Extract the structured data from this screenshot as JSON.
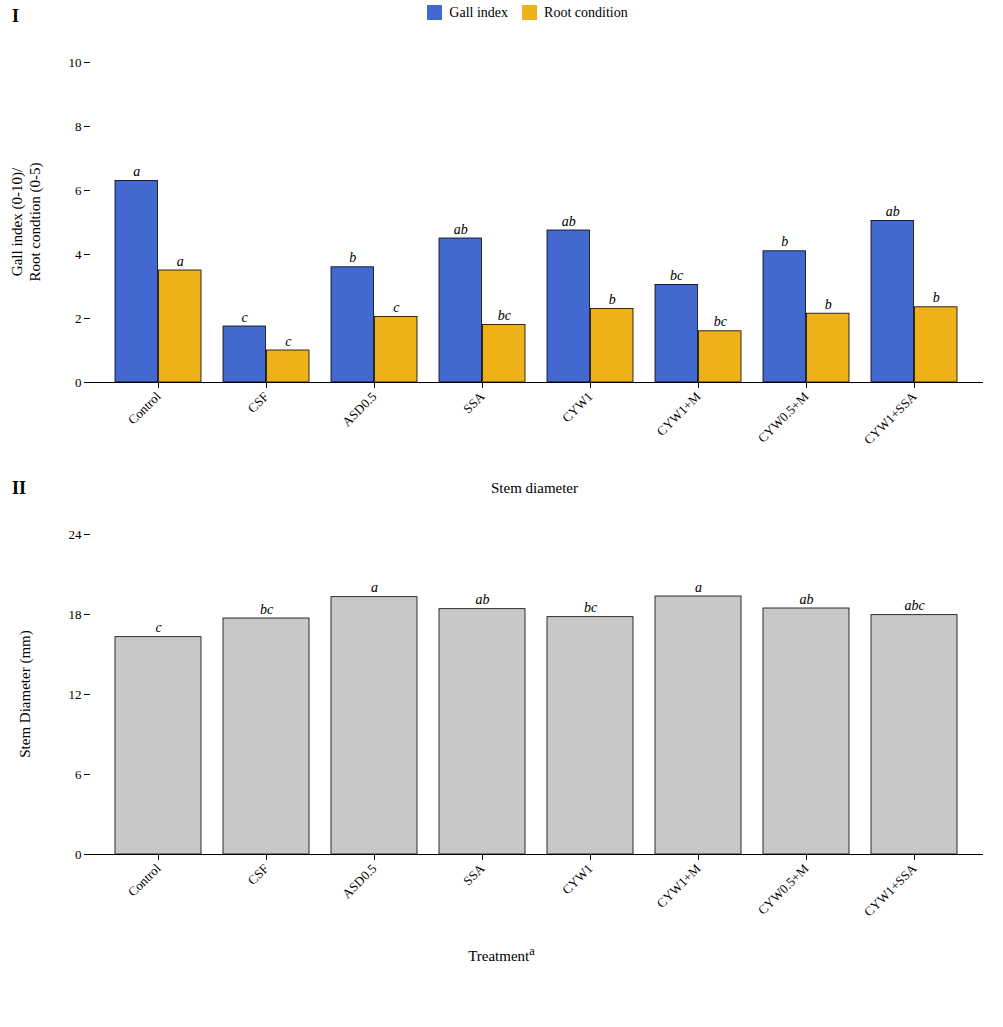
{
  "chart_data": [
    {
      "type": "bar",
      "panel_label": "I",
      "categories": [
        "Control",
        "CSF",
        "ASD0.5",
        "SSA",
        "CYW1",
        "CYW1+M",
        "CYW0.5+M",
        "CYW1+SSA"
      ],
      "series": [
        {
          "name": "Gall index",
          "values": [
            6.3,
            1.75,
            3.6,
            4.5,
            4.75,
            3.05,
            4.1,
            5.05
          ],
          "labels": [
            "a",
            "c",
            "b",
            "ab",
            "ab",
            "bc",
            "b",
            "ab"
          ]
        },
        {
          "name": "Root condition",
          "values": [
            3.5,
            1.0,
            2.05,
            1.8,
            2.3,
            1.6,
            2.15,
            2.35
          ],
          "labels": [
            "a",
            "c",
            "c",
            "bc",
            "b",
            "bc",
            "b",
            "b"
          ]
        }
      ],
      "ylabel": "Gall index (0-10)/\nRoot condtion (0-5)",
      "ylim": [
        0,
        10
      ],
      "yticks": [
        0,
        2,
        4,
        6,
        8,
        10
      ],
      "grid": false,
      "legend": "top"
    },
    {
      "type": "bar",
      "panel_label": "II",
      "title": "Stem diameter",
      "categories": [
        "Control",
        "CSF",
        "ASD0.5",
        "SSA",
        "CYW1",
        "CYW1+M",
        "CYW0.5+M",
        "CYW1+SSA"
      ],
      "values": [
        16.3,
        17.7,
        19.3,
        18.4,
        17.8,
        19.35,
        18.45,
        17.95
      ],
      "labels": [
        "c",
        "bc",
        "a",
        "ab",
        "bc",
        "a",
        "ab",
        "abc"
      ],
      "color": "#c8c8c8",
      "ylabel": "Stem Diameter (mm)",
      "xlabel": "Treatment",
      "xlabel_superscript": "a",
      "ylim": [
        0,
        24
      ],
      "yticks": [
        0,
        6,
        12,
        18,
        24
      ],
      "grid": false
    }
  ]
}
